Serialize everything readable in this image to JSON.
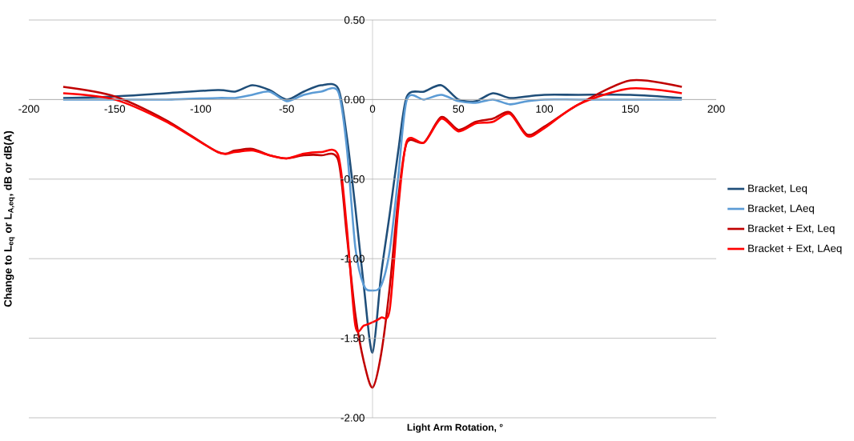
{
  "chart_data": {
    "type": "line",
    "xlabel": "Light Arm Rotation, °",
    "ylabel": "Change to L$_{eq}$ or L$_{A,eq}$, dB or dB(A)",
    "x": [
      -180,
      -150,
      -120,
      -90,
      -80,
      -70,
      -60,
      -50,
      -40,
      -30,
      -20,
      -15,
      -10,
      -5,
      0,
      5,
      10,
      15,
      20,
      30,
      40,
      50,
      60,
      70,
      80,
      90,
      100,
      120,
      150,
      180
    ],
    "series": [
      {
        "name": "Bracket, Leq",
        "color": "#1f4e79",
        "values": [
          0.01,
          0.02,
          0.04,
          0.06,
          0.05,
          0.09,
          0.06,
          0.0,
          0.05,
          0.09,
          0.07,
          -0.23,
          -0.68,
          -1.18,
          -1.59,
          -1.1,
          -0.72,
          -0.32,
          0.02,
          0.05,
          0.09,
          0.0,
          -0.01,
          0.04,
          0.01,
          0.02,
          0.03,
          0.03,
          0.03,
          0.01
        ]
      },
      {
        "name": "Bracket, LAeq",
        "color": "#5b9bd5",
        "values": [
          0.0,
          0.0,
          0.0,
          0.01,
          0.01,
          0.03,
          0.05,
          -0.01,
          0.03,
          0.05,
          0.05,
          -0.3,
          -0.93,
          -1.17,
          -1.2,
          -1.17,
          -0.95,
          -0.48,
          0.0,
          0.0,
          0.03,
          -0.01,
          -0.02,
          0.0,
          -0.03,
          -0.01,
          0.0,
          0.0,
          0.0,
          0.0
        ]
      },
      {
        "name": "Bracket + Ext, Leq",
        "color": "#c00000",
        "values": [
          0.08,
          0.02,
          -0.13,
          -0.33,
          -0.32,
          -0.31,
          -0.35,
          -0.37,
          -0.35,
          -0.35,
          -0.38,
          -0.85,
          -1.35,
          -1.65,
          -1.81,
          -1.6,
          -1.18,
          -0.62,
          -0.27,
          -0.27,
          -0.11,
          -0.19,
          -0.14,
          -0.12,
          -0.08,
          -0.22,
          -0.17,
          -0.03,
          0.12,
          0.08
        ]
      },
      {
        "name": "Bracket + Ext, LAeq",
        "color": "#ff0000",
        "values": [
          0.04,
          0.0,
          -0.14,
          -0.33,
          -0.33,
          -0.32,
          -0.35,
          -0.37,
          -0.34,
          -0.33,
          -0.35,
          -0.8,
          -1.42,
          -1.42,
          -1.4,
          -1.37,
          -1.32,
          -0.68,
          -0.26,
          -0.27,
          -0.12,
          -0.2,
          -0.15,
          -0.14,
          -0.09,
          -0.23,
          -0.18,
          -0.03,
          0.07,
          0.04
        ]
      }
    ],
    "xlim": [
      -200,
      200
    ],
    "xticks": [
      -200,
      -150,
      -100,
      -50,
      0,
      50,
      100,
      150,
      200
    ],
    "ylim": [
      -2,
      0.5
    ],
    "yticks": [
      {
        "value": -2,
        "label": "-2.00"
      },
      {
        "value": -1.5,
        "label": "-1.50"
      },
      {
        "value": -1,
        "label": "-1.00"
      },
      {
        "value": -0.5,
        "label": "-0.50"
      },
      {
        "value": 0,
        "label": "0.00"
      },
      {
        "value": 0.5,
        "label": "0.50"
      }
    ],
    "grid": "y",
    "legend": "right",
    "marker": "none",
    "line_style": "solid"
  }
}
